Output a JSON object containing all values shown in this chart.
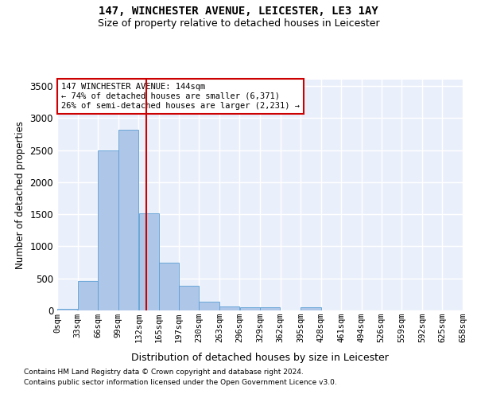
{
  "title1": "147, WINCHESTER AVENUE, LEICESTER, LE3 1AY",
  "title2": "Size of property relative to detached houses in Leicester",
  "xlabel": "Distribution of detached houses by size in Leicester",
  "ylabel": "Number of detached properties",
  "annotation_line1": "147 WINCHESTER AVENUE: 144sqm",
  "annotation_line2": "← 74% of detached houses are smaller (6,371)",
  "annotation_line3": "26% of semi-detached houses are larger (2,231) →",
  "property_size": 144,
  "bin_edges": [
    0,
    33,
    66,
    99,
    132,
    165,
    197,
    230,
    263,
    296,
    329,
    362,
    395,
    428,
    461,
    494,
    526,
    559,
    592,
    625,
    658
  ],
  "bin_labels": [
    "0sqm",
    "33sqm",
    "66sqm",
    "99sqm",
    "132sqm",
    "165sqm",
    "197sqm",
    "230sqm",
    "263sqm",
    "296sqm",
    "329sqm",
    "362sqm",
    "395sqm",
    "428sqm",
    "461sqm",
    "494sqm",
    "526sqm",
    "559sqm",
    "592sqm",
    "625sqm",
    "658sqm"
  ],
  "bar_heights": [
    20,
    460,
    2500,
    2820,
    1520,
    750,
    380,
    140,
    65,
    55,
    55,
    0,
    55,
    0,
    0,
    0,
    0,
    0,
    0,
    0
  ],
  "bar_color": "#aec6e8",
  "bar_edgecolor": "#5a9fd4",
  "vline_x": 144,
  "vline_color": "#cc0000",
  "bg_color": "#eaf0fb",
  "grid_color": "#ffffff",
  "footer1": "Contains HM Land Registry data © Crown copyright and database right 2024.",
  "footer2": "Contains public sector information licensed under the Open Government Licence v3.0.",
  "ylim": [
    0,
    3600
  ],
  "yticks": [
    0,
    500,
    1000,
    1500,
    2000,
    2500,
    3000,
    3500
  ]
}
